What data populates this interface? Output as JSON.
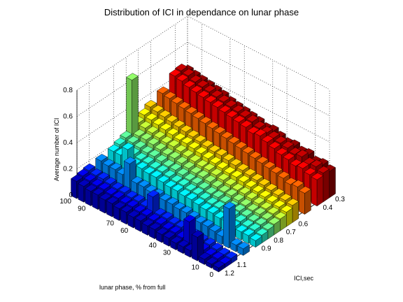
{
  "chart_data": {
    "type": "bar3d",
    "title": "Distribution of ICI in dependance on lunar phase",
    "zlabel": "Average number of ICI",
    "xlabel": "ICI,sec",
    "ylabel": "lunar phase, % from full",
    "zlim": [
      0,
      0.8
    ],
    "z_ticks": [
      "0",
      "0.2",
      "0.4",
      "0.6",
      "0.8"
    ],
    "ici_ticks": [
      "0.3",
      "0.4",
      "0.6",
      "0.7",
      "0.8",
      "0.9",
      "1.1",
      "1.2"
    ],
    "phase_ticks": [
      "100",
      "90",
      "70",
      "60",
      "40",
      "30",
      "10",
      "0"
    ],
    "grid": true,
    "colormap": "jet",
    "ici_values": [
      0.3,
      0.35,
      0.4,
      0.5,
      0.6,
      0.65,
      0.7,
      0.75,
      0.8,
      0.85,
      0.9,
      1.0,
      1.1,
      1.15,
      1.2
    ],
    "phase_values": [
      0,
      5,
      10,
      15,
      20,
      25,
      30,
      35,
      40,
      45,
      50,
      55,
      60,
      65,
      70,
      75,
      80,
      85,
      90,
      95,
      100
    ],
    "values_by_ici": [
      [
        0.2,
        0.22,
        0.21,
        0.24,
        0.23,
        0.25,
        0.24,
        0.26,
        0.28,
        0.27,
        0.29,
        0.3,
        0.31,
        0.32,
        0.33,
        0.35,
        0.36,
        0.37,
        0.38,
        0.39,
        0.4
      ],
      [
        0.22,
        0.24,
        0.23,
        0.26,
        0.25,
        0.27,
        0.28,
        0.29,
        0.3,
        0.31,
        0.33,
        0.34,
        0.35,
        0.36,
        0.37,
        0.38,
        0.39,
        0.4,
        0.41,
        0.43,
        0.44
      ],
      [
        0.2,
        0.21,
        0.23,
        0.22,
        0.24,
        0.25,
        0.27,
        0.29,
        0.31,
        0.3,
        0.32,
        0.33,
        0.34,
        0.35,
        0.36,
        0.37,
        0.38,
        0.39,
        0.4,
        0.42,
        0.43
      ],
      [
        0.16,
        0.18,
        0.17,
        0.19,
        0.2,
        0.21,
        0.22,
        0.23,
        0.24,
        0.25,
        0.26,
        0.27,
        0.28,
        0.29,
        0.3,
        0.31,
        0.32,
        0.33,
        0.34,
        0.35,
        0.36
      ],
      [
        0.13,
        0.14,
        0.15,
        0.16,
        0.17,
        0.18,
        0.19,
        0.2,
        0.21,
        0.22,
        0.23,
        0.23,
        0.24,
        0.25,
        0.26,
        0.27,
        0.28,
        0.29,
        0.3,
        0.31,
        0.32
      ],
      [
        0.11,
        0.12,
        0.13,
        0.14,
        0.15,
        0.16,
        0.17,
        0.18,
        0.18,
        0.19,
        0.2,
        0.21,
        0.22,
        0.23,
        0.24,
        0.24,
        0.25,
        0.26,
        0.27,
        0.28,
        0.29
      ],
      [
        0.09,
        0.1,
        0.11,
        0.12,
        0.13,
        0.14,
        0.14,
        0.15,
        0.16,
        0.17,
        0.18,
        0.18,
        0.19,
        0.2,
        0.21,
        0.22,
        0.22,
        0.23,
        0.24,
        0.25,
        0.26
      ],
      [
        0.08,
        0.09,
        0.1,
        0.1,
        0.11,
        0.12,
        0.13,
        0.13,
        0.14,
        0.15,
        0.16,
        0.16,
        0.17,
        0.18,
        0.19,
        0.19,
        0.2,
        0.21,
        0.22,
        0.22,
        0.23
      ],
      [
        0.07,
        0.08,
        0.08,
        0.09,
        0.1,
        0.1,
        0.11,
        0.12,
        0.12,
        0.13,
        0.14,
        0.14,
        0.15,
        0.16,
        0.16,
        0.17,
        0.18,
        0.18,
        0.19,
        0.2,
        0.21
      ],
      [
        0.06,
        0.07,
        0.07,
        0.08,
        0.09,
        0.09,
        0.1,
        0.1,
        0.11,
        0.12,
        0.12,
        0.13,
        0.13,
        0.14,
        0.15,
        0.15,
        0.16,
        0.16,
        0.17,
        0.18,
        0.19
      ],
      [
        0.05,
        0.06,
        0.06,
        0.07,
        0.08,
        0.08,
        0.09,
        0.09,
        0.1,
        0.11,
        0.11,
        0.12,
        0.12,
        0.13,
        0.14,
        0.14,
        0.15,
        0.15,
        0.16,
        0.17,
        0.17
      ],
      [
        0.05,
        0.05,
        0.06,
        0.06,
        0.07,
        0.08,
        0.08,
        0.09,
        0.1,
        0.1,
        0.11,
        0.11,
        0.12,
        0.12,
        0.13,
        0.13,
        0.14,
        0.14,
        0.15,
        0.15,
        0.16
      ],
      [
        0.04,
        0.04,
        0.05,
        0.06,
        0.06,
        0.07,
        0.07,
        0.08,
        0.08,
        0.09,
        0.09,
        0.1,
        0.1,
        0.11,
        0.11,
        0.12,
        0.12,
        0.13,
        0.14,
        0.14,
        0.15
      ],
      [
        0.03,
        0.04,
        0.04,
        0.05,
        0.05,
        0.06,
        0.06,
        0.07,
        0.07,
        0.08,
        0.08,
        0.09,
        0.09,
        0.1,
        0.1,
        0.11,
        0.11,
        0.12,
        0.12,
        0.13,
        0.14
      ],
      [
        0.03,
        0.03,
        0.04,
        0.04,
        0.05,
        0.05,
        0.05,
        0.06,
        0.06,
        0.07,
        0.07,
        0.08,
        0.08,
        0.09,
        0.09,
        0.1,
        0.1,
        0.11,
        0.11,
        0.12,
        0.13
      ]
    ],
    "highlight_bars": [
      {
        "ici": 0.75,
        "phase": 100,
        "value": 0.62
      },
      {
        "ici": 1.0,
        "phase": 80,
        "value": 0.25
      },
      {
        "ici": 0.9,
        "phase": 90,
        "value": 0.24
      },
      {
        "ici": 1.1,
        "phase": 55,
        "value": 0.2
      },
      {
        "ici": 1.05,
        "phase": 40,
        "value": 0.24
      },
      {
        "ici": 1.15,
        "phase": 25,
        "value": 0.21
      },
      {
        "ici": 1.2,
        "phase": 15,
        "value": 0.18
      },
      {
        "ici": 1.0,
        "phase": 10,
        "value": 0.3
      }
    ]
  }
}
